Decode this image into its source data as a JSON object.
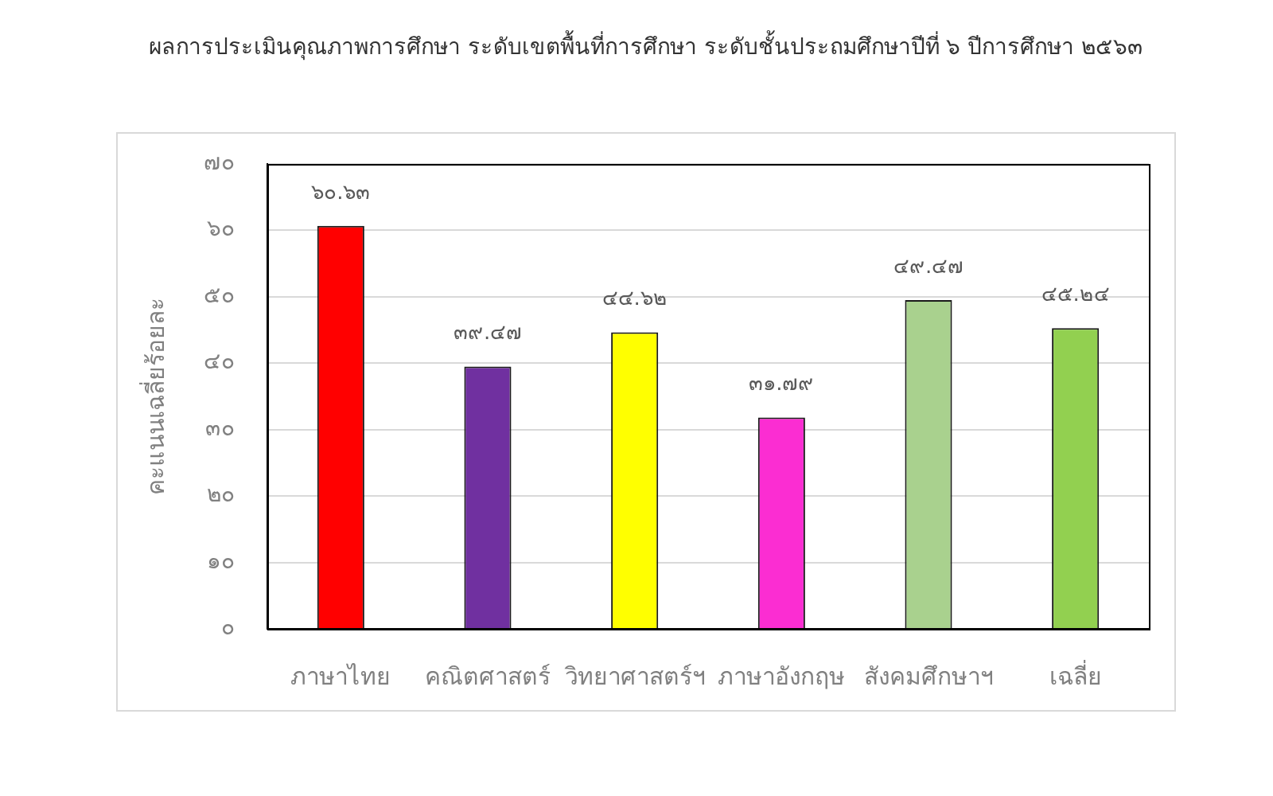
{
  "chart_data": {
    "type": "bar",
    "title": "ผลการประเมินคุณภาพการศึกษา ระดับเขตพื้นที่การศึกษา ระดับชั้นประถมศึกษาปีที่ ๖ ปีการศึกษา ๒๕๖๓",
    "ylabel": "คะแนนเฉลี่ยร้อยละ",
    "categories": [
      "ภาษาไทย",
      "คณิตศาสตร์",
      "วิทยาศาสตร์ฯ",
      "ภาษาอังกฤษ",
      "สังคมศึกษาฯ",
      "เฉลี่ย"
    ],
    "values": [
      60.63,
      39.47,
      44.62,
      31.79,
      49.47,
      45.24
    ],
    "value_labels": [
      "๖๐.๖๓",
      "๓๙.๔๗",
      "๔๔.๖๒",
      "๓๑.๗๙",
      "๔๙.๔๗",
      "๔๕.๒๔"
    ],
    "colors": [
      "#ff0000",
      "#7030a0",
      "#ffff00",
      "#fb2dd2",
      "#a9d18e",
      "#92d050"
    ],
    "ylim": [
      0,
      70
    ],
    "yticks": [
      {
        "value": 0,
        "label": "๐"
      },
      {
        "value": 10,
        "label": "๑๐"
      },
      {
        "value": 20,
        "label": "๒๐"
      },
      {
        "value": 30,
        "label": "๓๐"
      },
      {
        "value": 40,
        "label": "๔๐"
      },
      {
        "value": 50,
        "label": "๕๐"
      },
      {
        "value": 60,
        "label": "๖๐"
      },
      {
        "value": 70,
        "label": "๗๐"
      }
    ],
    "grid": "y"
  }
}
